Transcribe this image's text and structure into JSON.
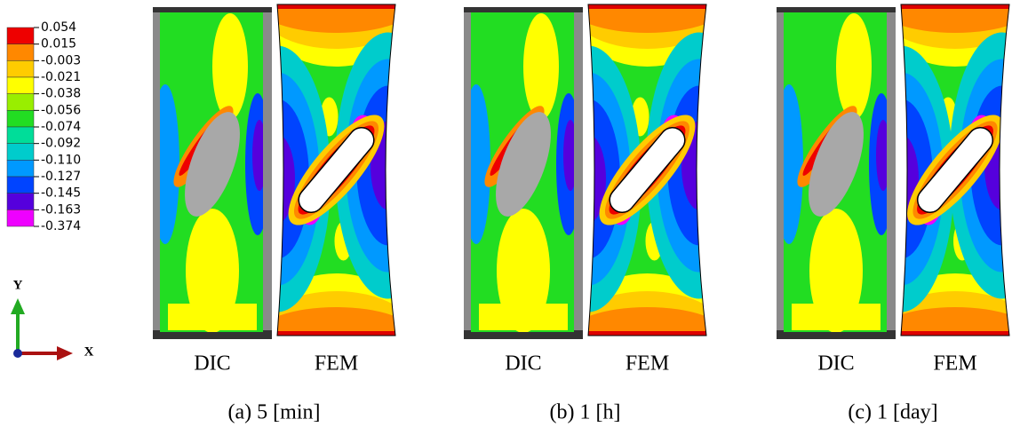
{
  "legend": {
    "labels": [
      "0.054",
      "0.015",
      "-0.003",
      "-0.021",
      "-0.038",
      "-0.056",
      "-0.074",
      "-0.092",
      "-0.110",
      "-0.127",
      "-0.145",
      "-0.163",
      "-0.374"
    ],
    "colors": [
      "#ee0000",
      "#ff8800",
      "#ffcc00",
      "#ffff00",
      "#99ee00",
      "#22dd22",
      "#00dd99",
      "#00cccc",
      "#0099ff",
      "#0044ff",
      "#5500dd",
      "#ee00ff"
    ]
  },
  "axes": {
    "y": "Y",
    "x": "X"
  },
  "panels": [
    {
      "dic": "DIC",
      "fem": "FEM",
      "caption": "(a) 5 [min]"
    },
    {
      "dic": "DIC",
      "fem": "FEM",
      "caption": "(b) 1 [h]"
    },
    {
      "dic": "DIC",
      "fem": "FEM",
      "caption": "(c) 1 [day]"
    }
  ]
}
